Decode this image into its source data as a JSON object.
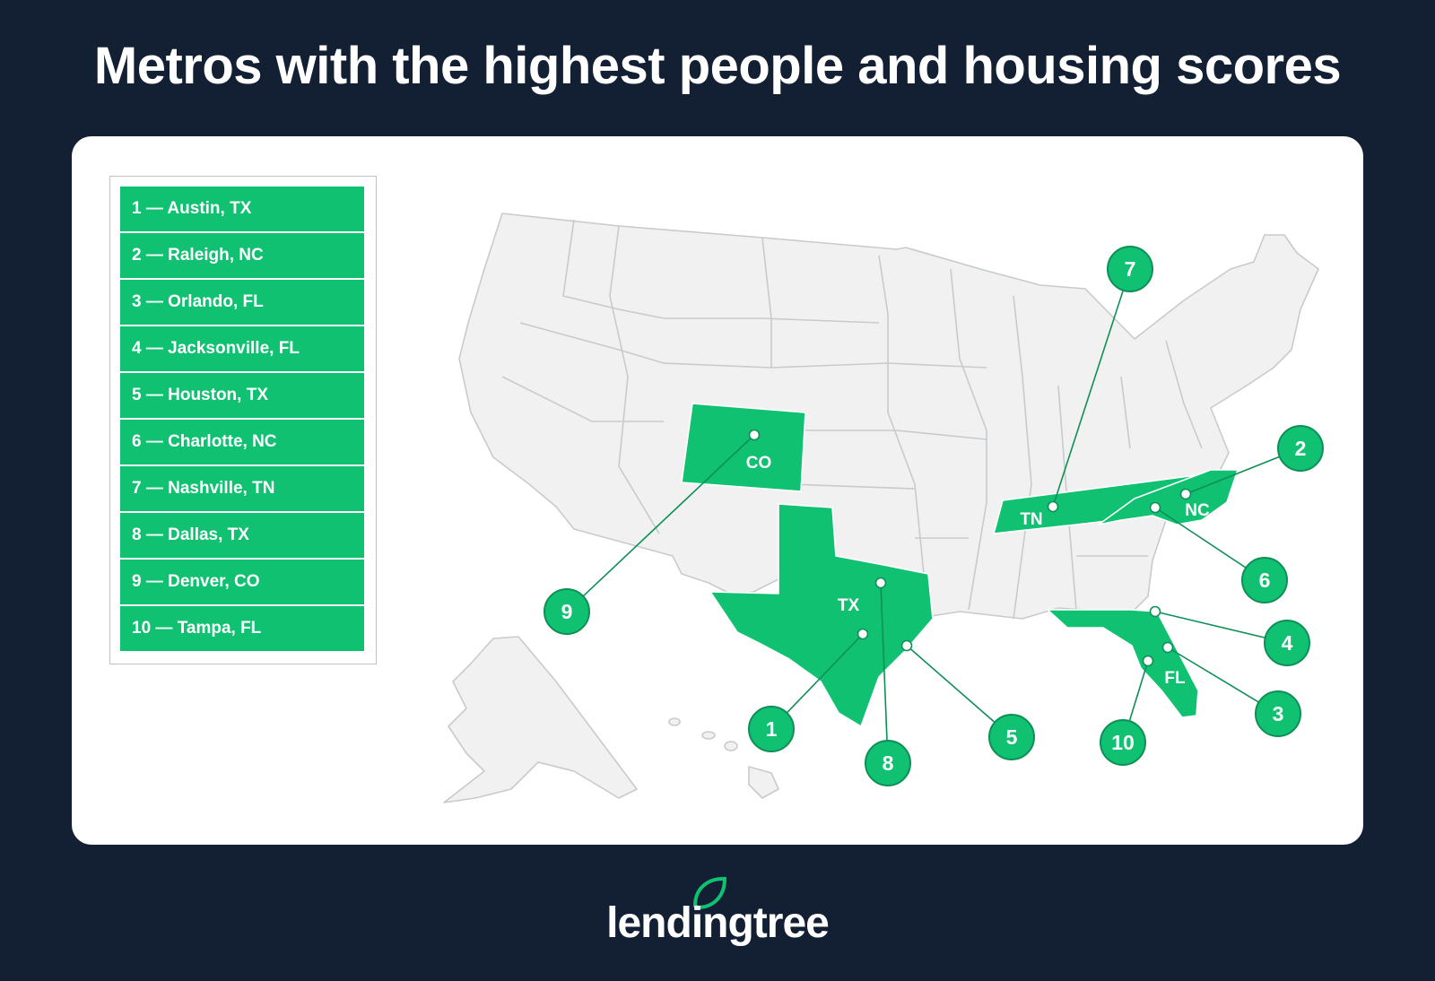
{
  "title": "Metros with the highest people and housing scores",
  "legend": [
    "1 — Austin, TX",
    "2 — Raleigh, NC",
    "3 — Orlando, FL",
    "4 — Jacksonville, FL",
    "5 — Houston, TX",
    "6 — Charlotte, NC",
    "7 — Nashville, TN",
    "8 — Dallas, TX",
    "9 — Denver, CO",
    "10 — Tampa, FL"
  ],
  "state_labels": {
    "co": "CO",
    "tx": "TX",
    "tn": "TN",
    "nc": "NC",
    "fl": "FL"
  },
  "markers": [
    {
      "rank": "1",
      "city": "Austin",
      "state": "TX"
    },
    {
      "rank": "2",
      "city": "Raleigh",
      "state": "NC"
    },
    {
      "rank": "3",
      "city": "Orlando",
      "state": "FL"
    },
    {
      "rank": "4",
      "city": "Jacksonville",
      "state": "FL"
    },
    {
      "rank": "5",
      "city": "Houston",
      "state": "TX"
    },
    {
      "rank": "6",
      "city": "Charlotte",
      "state": "NC"
    },
    {
      "rank": "7",
      "city": "Nashville",
      "state": "TN"
    },
    {
      "rank": "8",
      "city": "Dallas",
      "state": "TX"
    },
    {
      "rank": "9",
      "city": "Denver",
      "state": "CO"
    },
    {
      "rank": "10",
      "city": "Tampa",
      "state": "FL"
    }
  ],
  "colors": {
    "background": "#132034",
    "highlight": "#10c172",
    "state_fill": "#f1f1f1",
    "state_border": "#c7cbce"
  },
  "brand": {
    "name": "lendingtree",
    "icon": "leaf-icon"
  }
}
